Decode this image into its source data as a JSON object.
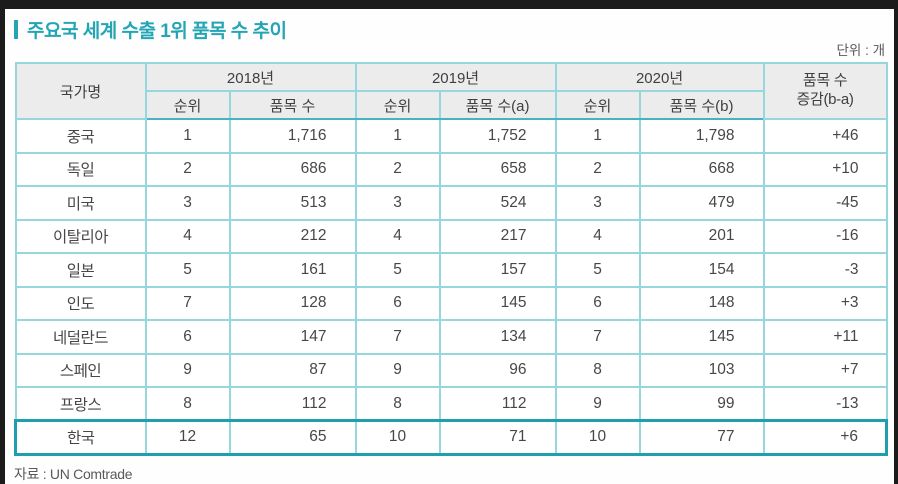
{
  "title": "주요국 세계 수출 1위 품목 수 추이",
  "unit_label": "단위 : 개",
  "source_label": "자료 : UN Comtrade",
  "colors": {
    "accent_teal": "#23a5b4",
    "grid_teal": "#96d6dd",
    "highlight_border": "#1d9fae",
    "header_bg": "#ececec",
    "frame_dark": "#1b1b1b",
    "text_gray": "#474747"
  },
  "table": {
    "headers": {
      "country": "국가명",
      "groups": [
        {
          "year": "2018년",
          "rank": "순위",
          "count": "품목 수"
        },
        {
          "year": "2019년",
          "rank": "순위",
          "count": "품목 수(a)"
        },
        {
          "year": "2020년",
          "rank": "순위",
          "count": "품목 수(b)"
        }
      ],
      "change_line1": "품목 수",
      "change_line2": "증감(b-a)"
    },
    "rows": [
      {
        "country": "중국",
        "rank2018": "1",
        "count2018": "1,716",
        "rank2019": "1",
        "count2019": "1,752",
        "rank2020": "1",
        "count2020": "1,798",
        "change": "+46",
        "highlight": false
      },
      {
        "country": "독일",
        "rank2018": "2",
        "count2018": "686",
        "rank2019": "2",
        "count2019": "658",
        "rank2020": "2",
        "count2020": "668",
        "change": "+10",
        "highlight": false
      },
      {
        "country": "미국",
        "rank2018": "3",
        "count2018": "513",
        "rank2019": "3",
        "count2019": "524",
        "rank2020": "3",
        "count2020": "479",
        "change": "-45",
        "highlight": false
      },
      {
        "country": "이탈리아",
        "rank2018": "4",
        "count2018": "212",
        "rank2019": "4",
        "count2019": "217",
        "rank2020": "4",
        "count2020": "201",
        "change": "-16",
        "highlight": false
      },
      {
        "country": "일본",
        "rank2018": "5",
        "count2018": "161",
        "rank2019": "5",
        "count2019": "157",
        "rank2020": "5",
        "count2020": "154",
        "change": "-3",
        "highlight": false
      },
      {
        "country": "인도",
        "rank2018": "7",
        "count2018": "128",
        "rank2019": "6",
        "count2019": "145",
        "rank2020": "6",
        "count2020": "148",
        "change": "+3",
        "highlight": false
      },
      {
        "country": "네덜란드",
        "rank2018": "6",
        "count2018": "147",
        "rank2019": "7",
        "count2019": "134",
        "rank2020": "7",
        "count2020": "145",
        "change": "+11",
        "highlight": false
      },
      {
        "country": "스페인",
        "rank2018": "9",
        "count2018": "87",
        "rank2019": "9",
        "count2019": "96",
        "rank2020": "8",
        "count2020": "103",
        "change": "+7",
        "highlight": false
      },
      {
        "country": "프랑스",
        "rank2018": "8",
        "count2018": "112",
        "rank2019": "8",
        "count2019": "112",
        "rank2020": "9",
        "count2020": "99",
        "change": "-13",
        "highlight": false
      },
      {
        "country": "한국",
        "rank2018": "12",
        "count2018": "65",
        "rank2019": "10",
        "count2019": "71",
        "rank2020": "10",
        "count2020": "77",
        "change": "+6",
        "highlight": true
      }
    ]
  }
}
